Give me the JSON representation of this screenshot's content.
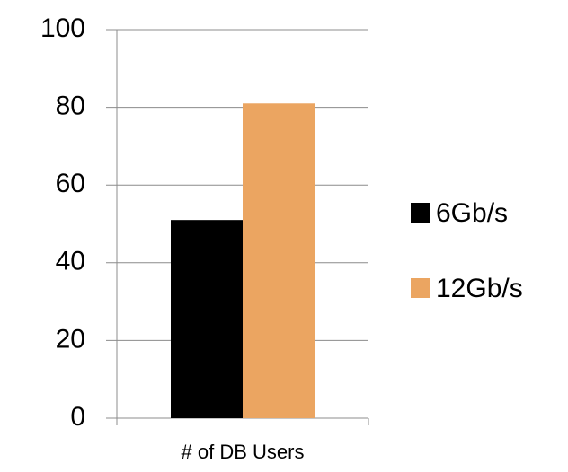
{
  "chart_data": {
    "type": "bar",
    "categories": [
      "# of DB Users"
    ],
    "series": [
      {
        "name": "6Gb/s",
        "color": "#000000",
        "values": [
          51
        ]
      },
      {
        "name": "12Gb/s",
        "color": "#eba561",
        "values": [
          81
        ]
      }
    ],
    "ylim": [
      0,
      100
    ],
    "yticks": [
      0,
      20,
      40,
      60,
      80,
      100
    ],
    "grid": true,
    "legend": "right"
  }
}
